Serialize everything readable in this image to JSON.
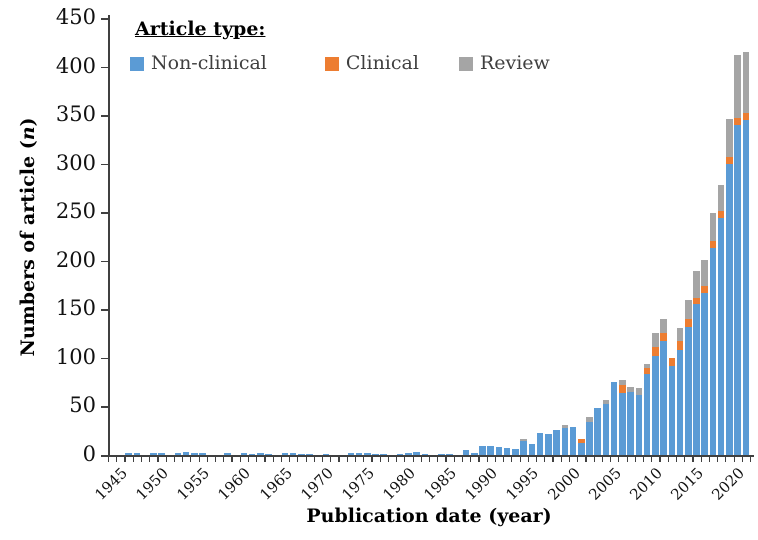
{
  "figure": {
    "y_axis": {
      "title_before": "Numbers of article (",
      "title_italic": "n",
      "title_after": ")",
      "tick_labels": [
        0,
        50,
        100,
        150,
        200,
        250,
        300,
        350,
        400,
        450
      ]
    },
    "x_axis": {
      "title": "Publication date (year)",
      "tick_labels": [
        1945,
        1950,
        1955,
        1960,
        1965,
        1970,
        1975,
        1980,
        1985,
        1990,
        1995,
        2000,
        2005,
        2010,
        2015,
        2020
      ]
    },
    "legend": {
      "title": "Article type:"
    }
  },
  "chart_data": {
    "type": "bar",
    "stacked": true,
    "grid": false,
    "legend_position": "top-left-inside",
    "ylim": [
      0,
      450
    ],
    "y_step": 50,
    "xlabel": "Publication date (year)",
    "ylabel": "Numbers of article (n)",
    "x": [
      1945,
      1946,
      1947,
      1948,
      1949,
      1950,
      1951,
      1952,
      1953,
      1954,
      1955,
      1956,
      1957,
      1958,
      1959,
      1960,
      1961,
      1962,
      1963,
      1964,
      1965,
      1966,
      1967,
      1968,
      1969,
      1970,
      1971,
      1972,
      1973,
      1974,
      1975,
      1976,
      1977,
      1978,
      1979,
      1980,
      1981,
      1982,
      1983,
      1984,
      1985,
      1986,
      1987,
      1988,
      1989,
      1990,
      1991,
      1992,
      1993,
      1994,
      1995,
      1996,
      1997,
      1998,
      1999,
      2000,
      2001,
      2002,
      2003,
      2004,
      2005,
      2006,
      2007,
      2008,
      2009,
      2010,
      2011,
      2012,
      2013,
      2014,
      2015,
      2016,
      2017,
      2018,
      2019,
      2020,
      2021,
      2022
    ],
    "series": [
      {
        "name": "Non-clinical",
        "color": "#5B9BD5",
        "values": [
          0,
          0,
          2,
          2,
          0,
          2,
          2,
          0,
          2,
          3,
          2,
          2,
          0,
          0,
          2,
          0,
          2,
          1,
          2,
          1,
          0,
          2,
          2,
          1,
          1,
          0,
          1,
          0,
          0,
          2,
          2,
          2,
          1,
          1,
          0,
          1,
          2,
          3,
          1,
          0,
          1,
          1,
          0,
          5,
          2,
          9,
          9,
          8,
          7,
          6,
          14,
          11,
          23,
          22,
          26,
          28,
          29,
          12,
          34,
          48,
          53,
          75,
          64,
          65,
          62,
          83,
          102,
          117,
          92,
          108,
          132,
          155,
          167,
          213,
          244,
          300,
          340,
          345
        ]
      },
      {
        "name": "Clinical",
        "color": "#ED7D31",
        "values": [
          0,
          0,
          0,
          0,
          0,
          0,
          0,
          0,
          0,
          0,
          0,
          0,
          0,
          0,
          0,
          0,
          0,
          0,
          0,
          0,
          0,
          0,
          0,
          0,
          0,
          0,
          0,
          0,
          0,
          0,
          0,
          0,
          0,
          0,
          0,
          0,
          0,
          0,
          0,
          0,
          0,
          0,
          0,
          0,
          0,
          0,
          0,
          0,
          0,
          0,
          0,
          0,
          0,
          0,
          0,
          0,
          0,
          5,
          0,
          0,
          0,
          0,
          8,
          0,
          0,
          7,
          9,
          9,
          8,
          9,
          8,
          7,
          7,
          7,
          7,
          7,
          7,
          7
        ]
      },
      {
        "name": "Review",
        "color": "#A5A5A5",
        "values": [
          0,
          0,
          0,
          0,
          0,
          0,
          0,
          0,
          0,
          0,
          0,
          0,
          0,
          0,
          0,
          0,
          0,
          0,
          0,
          0,
          0,
          0,
          0,
          0,
          0,
          0,
          0,
          0,
          0,
          0,
          0,
          0,
          0,
          0,
          0,
          0,
          0,
          0,
          0,
          0,
          0,
          0,
          0,
          0,
          0,
          0,
          0,
          0,
          0,
          0,
          2,
          0,
          0,
          0,
          0,
          3,
          0,
          0,
          5,
          0,
          4,
          0,
          5,
          5,
          7,
          4,
          15,
          14,
          0,
          14,
          20,
          27,
          27,
          29,
          27,
          39,
          65,
          63
        ]
      }
    ]
  }
}
